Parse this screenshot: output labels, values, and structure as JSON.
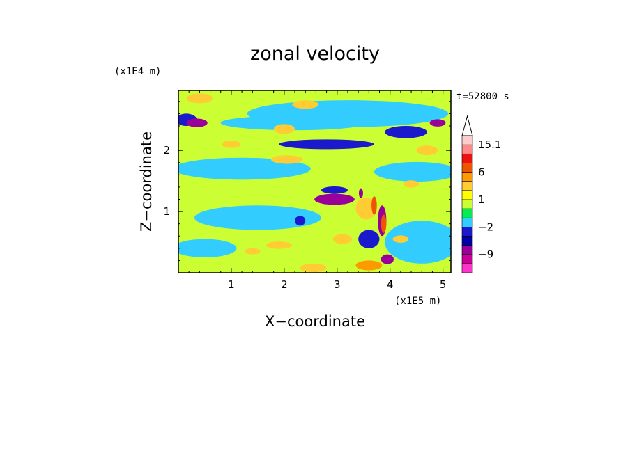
{
  "chart_data": {
    "type": "heatmap",
    "title": "zonal velocity",
    "xlabel": "X−coordinate",
    "ylabel": "Z−coordinate",
    "x_multiplier": "(x1E5 m)",
    "y_multiplier": "(x1E4 m)",
    "time_label": "t=52800 s",
    "xlim": [
      0,
      5.15
    ],
    "ylim": [
      0,
      2.98
    ],
    "x_ticks": [
      1,
      2,
      3,
      4,
      5
    ],
    "x_tick_labels": [
      "1",
      "2",
      "3",
      "4",
      "5"
    ],
    "y_ticks": [
      1,
      2
    ],
    "y_tick_labels": [
      "1",
      "2"
    ],
    "colorbar": {
      "levels": [
        -15,
        -12,
        -9,
        -6,
        -4,
        -2,
        -1,
        0,
        1,
        2,
        4,
        6,
        9,
        12,
        15.1
      ],
      "colors": [
        "#ff33cc",
        "#cc0099",
        "#990099",
        "#0000aa",
        "#1a1acc",
        "#33ccff",
        "#00ee55",
        "#ccff33",
        "#ffff00",
        "#ffcc33",
        "#ff9900",
        "#ee5500",
        "#ee1111",
        "#ff8888",
        "#ffcccc"
      ],
      "labels": [
        "15.1",
        "6",
        "1",
        "−2",
        "−9"
      ],
      "label_values": [
        15.1,
        6,
        1,
        -2,
        -9
      ],
      "extend": "max"
    },
    "features": [
      {
        "x": 2.6,
        "z": 2.0,
        "value": 0.4,
        "rx": 2.6,
        "rz": 0.35
      },
      {
        "x": 1.2,
        "z": 1.7,
        "value": -1.3,
        "rx": 1.3,
        "rz": 0.18
      },
      {
        "x": 4.5,
        "z": 1.65,
        "value": -1.3,
        "rx": 0.8,
        "rz": 0.16
      },
      {
        "x": 1.5,
        "z": 0.9,
        "value": -1.3,
        "rx": 1.2,
        "rz": 0.2
      },
      {
        "x": 0.5,
        "z": 0.4,
        "value": -1.3,
        "rx": 0.6,
        "rz": 0.15
      },
      {
        "x": 4.6,
        "z": 0.5,
        "value": -1.3,
        "rx": 0.7,
        "rz": 0.35
      },
      {
        "x": 3.2,
        "z": 2.6,
        "value": -1.3,
        "rx": 1.9,
        "rz": 0.22
      },
      {
        "x": 2.2,
        "z": 2.45,
        "value": -1.3,
        "rx": 1.4,
        "rz": 0.12
      },
      {
        "x": 2.8,
        "z": 2.1,
        "value": -3.0,
        "rx": 0.9,
        "rz": 0.08
      },
      {
        "x": 4.3,
        "z": 2.3,
        "value": -3.0,
        "rx": 0.4,
        "rz": 0.1
      },
      {
        "x": 0.15,
        "z": 2.5,
        "value": -3.0,
        "rx": 0.2,
        "rz": 0.1
      },
      {
        "x": 0.35,
        "z": 2.45,
        "value": -7.5,
        "rx": 0.2,
        "rz": 0.07
      },
      {
        "x": 4.9,
        "z": 2.45,
        "value": -7.5,
        "rx": 0.15,
        "rz": 0.06
      },
      {
        "x": 2.95,
        "z": 1.2,
        "value": -7.5,
        "rx": 0.38,
        "rz": 0.09
      },
      {
        "x": 2.95,
        "z": 1.35,
        "value": -3.0,
        "rx": 0.25,
        "rz": 0.06
      },
      {
        "x": 3.85,
        "z": 0.85,
        "value": -7.5,
        "rx": 0.08,
        "rz": 0.25
      },
      {
        "x": 3.95,
        "z": 0.22,
        "value": -7.5,
        "rx": 0.12,
        "rz": 0.08
      },
      {
        "x": 3.6,
        "z": 0.55,
        "value": -3.0,
        "rx": 0.2,
        "rz": 0.15
      },
      {
        "x": 2.3,
        "z": 0.85,
        "value": -3.0,
        "rx": 0.1,
        "rz": 0.08
      },
      {
        "x": 3.45,
        "z": 1.3,
        "value": -7.5,
        "rx": 0.04,
        "rz": 0.08
      },
      {
        "x": 2.4,
        "z": 2.75,
        "value": 3.0,
        "rx": 0.25,
        "rz": 0.07
      },
      {
        "x": 0.4,
        "z": 2.85,
        "value": 3.0,
        "rx": 0.25,
        "rz": 0.08
      },
      {
        "x": 2.05,
        "z": 1.85,
        "value": 3.0,
        "rx": 0.3,
        "rz": 0.07
      },
      {
        "x": 2.0,
        "z": 2.35,
        "value": 3.0,
        "rx": 0.2,
        "rz": 0.08
      },
      {
        "x": 3.55,
        "z": 1.05,
        "value": 3.0,
        "rx": 0.2,
        "rz": 0.18
      },
      {
        "x": 3.7,
        "z": 1.1,
        "value": 7.5,
        "rx": 0.05,
        "rz": 0.15
      },
      {
        "x": 3.88,
        "z": 0.8,
        "value": 7.5,
        "rx": 0.05,
        "rz": 0.15
      },
      {
        "x": 2.55,
        "z": 0.08,
        "value": 3.0,
        "rx": 0.25,
        "rz": 0.07
      },
      {
        "x": 3.6,
        "z": 0.12,
        "value": 5.0,
        "rx": 0.25,
        "rz": 0.08
      },
      {
        "x": 1.9,
        "z": 0.45,
        "value": 3.0,
        "rx": 0.25,
        "rz": 0.06
      },
      {
        "x": 4.7,
        "z": 2.0,
        "value": 3.0,
        "rx": 0.2,
        "rz": 0.08
      },
      {
        "x": 4.4,
        "z": 1.45,
        "value": 3.0,
        "rx": 0.15,
        "rz": 0.06
      },
      {
        "x": 1.4,
        "z": 0.35,
        "value": 3.0,
        "rx": 0.15,
        "rz": 0.05
      },
      {
        "x": 4.2,
        "z": 0.55,
        "value": 3.0,
        "rx": 0.15,
        "rz": 0.06
      },
      {
        "x": 3.1,
        "z": 0.55,
        "value": 3.0,
        "rx": 0.18,
        "rz": 0.08
      },
      {
        "x": 1.0,
        "z": 2.1,
        "value": 3.0,
        "rx": 0.18,
        "rz": 0.06
      }
    ]
  }
}
